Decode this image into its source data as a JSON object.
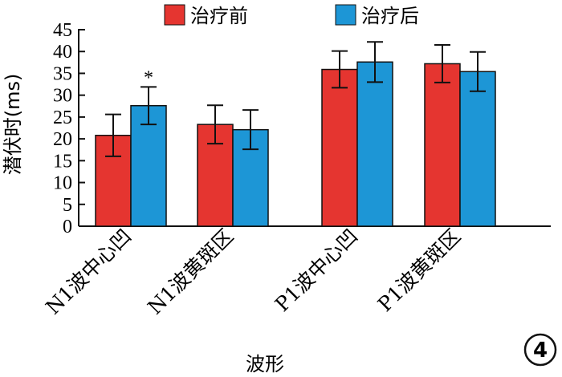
{
  "chart_data": {
    "type": "bar",
    "categories": [
      "N1波中心凹",
      "N1波黄斑区",
      "P1波中心凹",
      "P1波黄斑区"
    ],
    "series": [
      {
        "name": "治疗前",
        "color": "#e53530",
        "values": [
          20.8,
          23.3,
          35.9,
          37.2
        ],
        "errors": [
          4.8,
          4.4,
          4.2,
          4.3
        ]
      },
      {
        "name": "治疗后",
        "color": "#1d96d6",
        "values": [
          27.6,
          22.1,
          37.6,
          35.4
        ],
        "errors": [
          4.3,
          4.5,
          4.6,
          4.5
        ]
      }
    ],
    "ylabel": "潜伏时(ms)",
    "xlabel": "波形",
    "ylim": [
      0,
      45
    ],
    "yticks": [
      0,
      5,
      10,
      15,
      20,
      25,
      30,
      35,
      40,
      45
    ],
    "significance": [
      {
        "category_index": 0,
        "series_index": 1,
        "label": "*"
      }
    ],
    "legend_position": "top",
    "panel_label": "4"
  }
}
